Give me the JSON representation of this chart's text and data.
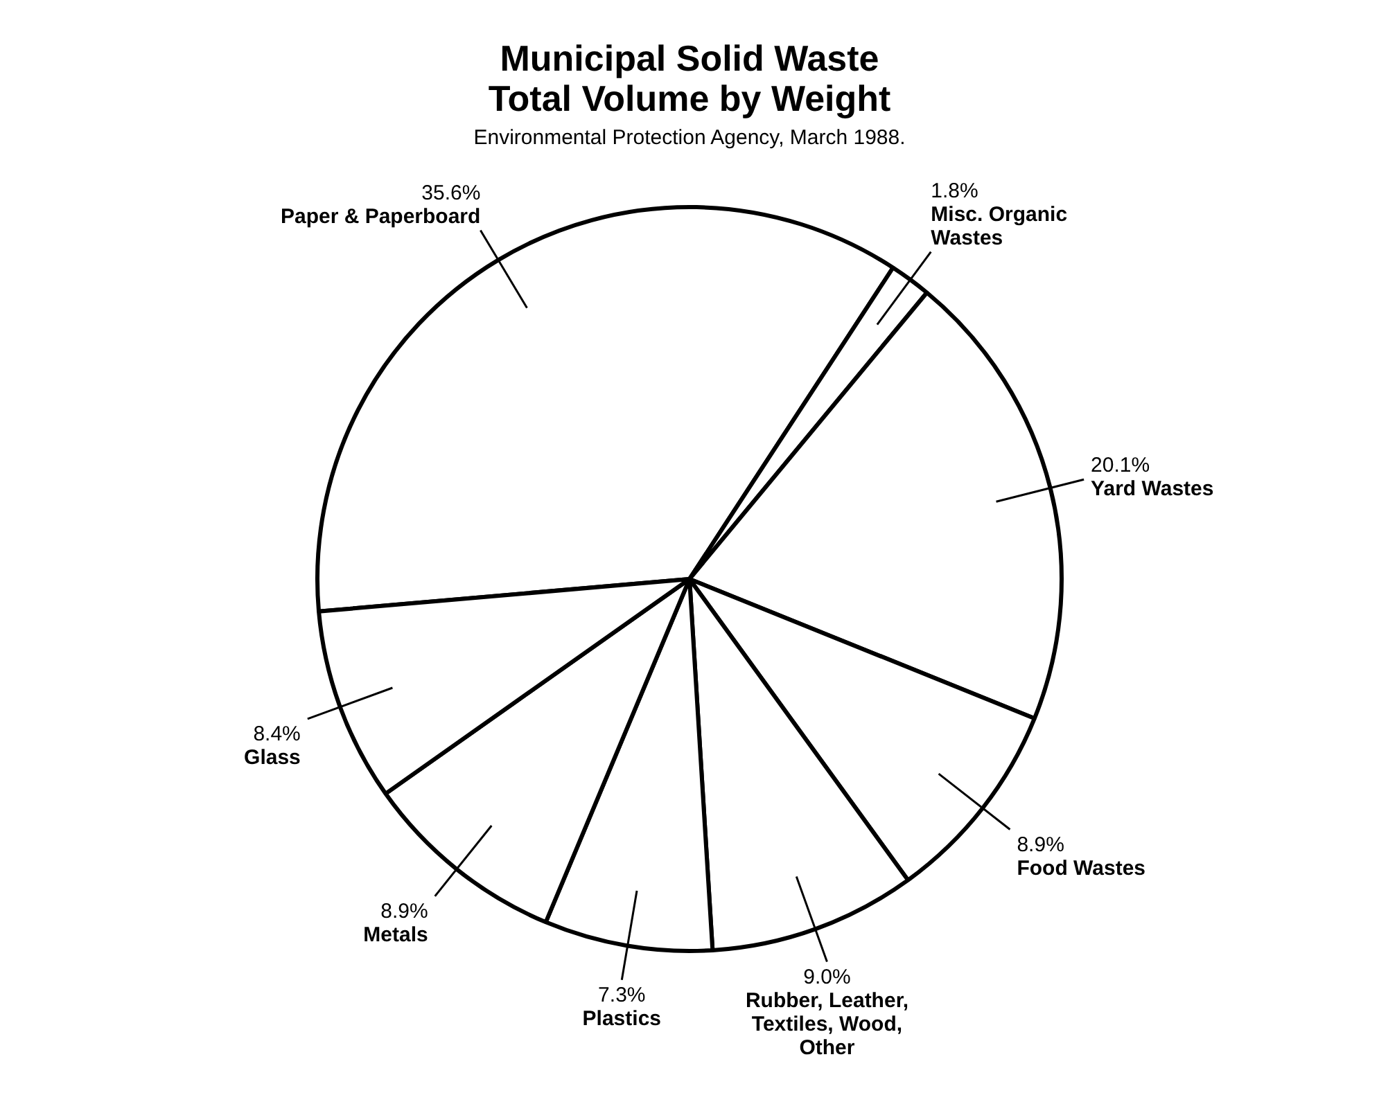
{
  "chart_data": {
    "type": "pie",
    "title": "Municipal Solid Waste\nTotal Volume by Weight",
    "subtitle": "Environmental Protection Agency, March 1988.",
    "categories": [
      "Paper & Paperboard",
      "Misc. Organic Wastes",
      "Yard Wastes",
      "Food Wastes",
      "Rubber, Leather, Textiles, Wood, Other",
      "Plastics",
      "Metals",
      "Glass"
    ],
    "values": [
      35.6,
      1.8,
      20.1,
      8.9,
      9.0,
      7.3,
      8.9,
      8.4
    ],
    "value_labels": [
      "35.6%",
      "1.8%",
      "20.1%",
      "8.9%",
      "9.0%",
      "7.3%",
      "8.9%",
      "8.4%"
    ],
    "colors": [
      "#ffffff",
      "#ffffff",
      "#ffffff",
      "#ffffff",
      "#ffffff",
      "#ffffff",
      "#ffffff",
      "#ffffff"
    ],
    "legend": false
  }
}
